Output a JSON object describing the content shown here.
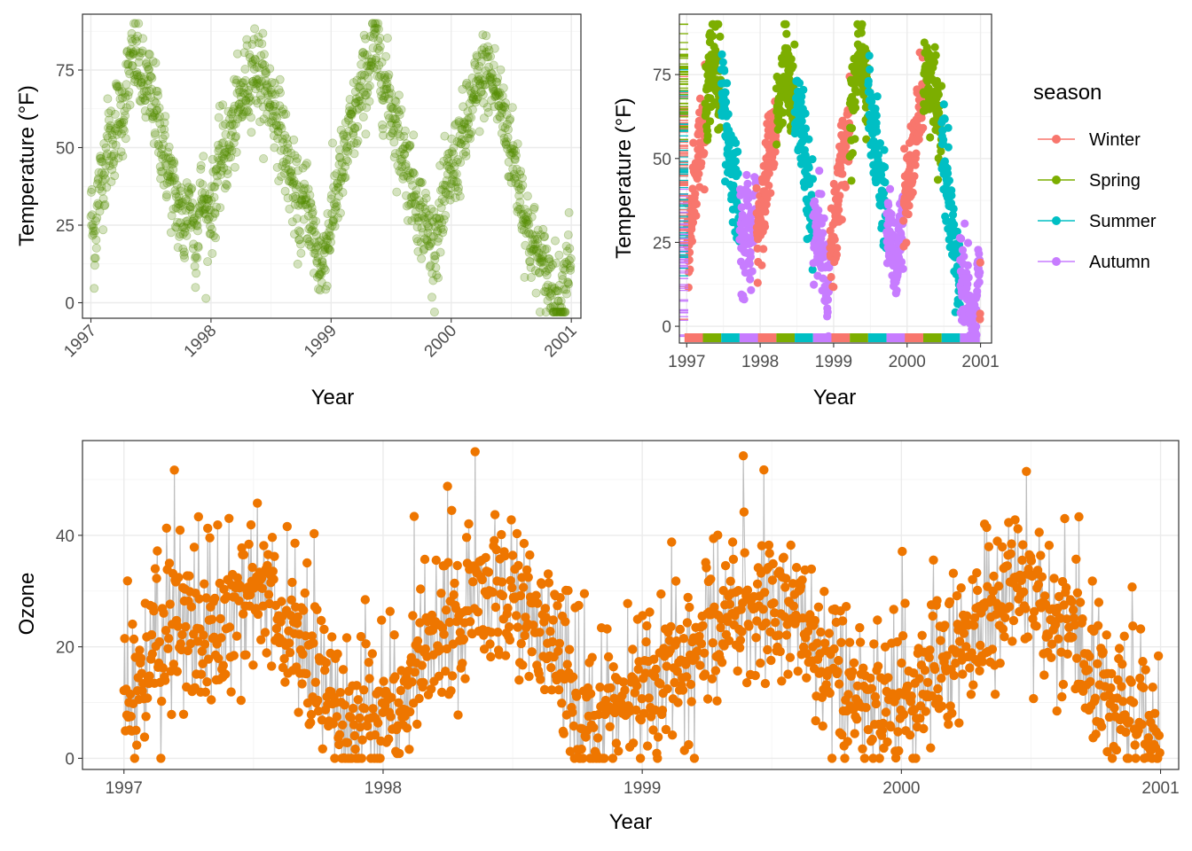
{
  "chart_data": [
    {
      "type": "scatter",
      "panel": "top-left",
      "title": "",
      "xlabel": "Year",
      "ylabel": "Temperature (°F)",
      "xlim": [
        1996.93,
        2001.08
      ],
      "ylim": [
        -5,
        93
      ],
      "x_ticks": [
        1997,
        1998,
        1999,
        2000,
        2001
      ],
      "x_tick_labels": [
        "1997",
        "1998",
        "1999",
        "2000",
        "2001"
      ],
      "x_tick_angle": 45,
      "y_ticks": [
        0,
        25,
        50,
        75
      ],
      "y_tick_labels": [
        "0",
        "25",
        "50",
        "75"
      ],
      "grid": true,
      "point_color": "#548B00",
      "point_alpha": 0.25,
      "series": [
        {
          "x": [
            1997.0,
            1997.03,
            1997.06,
            1997.09,
            1997.12,
            1997.15,
            1997.18,
            1997.21,
            1997.24,
            1997.27,
            1997.3,
            1997.33,
            1997.36,
            1997.39,
            1997.42,
            1997.45,
            1997.48,
            1997.51,
            1997.54,
            1997.57,
            1997.6,
            1997.63,
            1997.66,
            1997.69,
            1997.72,
            1997.75,
            1997.78,
            1997.81,
            1997.84,
            1997.87,
            1997.9,
            1997.93,
            1997.96,
            1997.99,
            1998.02,
            1998.05,
            1998.08,
            1998.11,
            1998.14,
            1998.17,
            1998.2,
            1998.23,
            1998.26,
            1998.29,
            1998.32,
            1998.35,
            1998.38,
            1998.41,
            1998.44,
            1998.47,
            1998.5,
            1998.53,
            1998.56,
            1998.59,
            1998.62,
            1998.65,
            1998.68,
            1998.71,
            1998.74,
            1998.77,
            1998.8,
            1998.83,
            1998.86,
            1998.89,
            1998.92,
            1998.95,
            1998.98,
            1999.01,
            1999.04,
            1999.07,
            1999.1,
            1999.13,
            1999.16,
            1999.19,
            1999.22,
            1999.25,
            1999.28,
            1999.31,
            1999.34,
            1999.37,
            1999.4,
            1999.43,
            1999.46,
            1999.49,
            1999.52,
            1999.55,
            1999.58,
            1999.61,
            1999.64,
            1999.67,
            1999.7,
            1999.73,
            1999.76,
            1999.79,
            1999.82,
            1999.85,
            1999.88,
            1999.91,
            1999.94,
            1999.97,
            2000.0,
            2000.03,
            2000.06,
            2000.09,
            2000.12,
            2000.15,
            2000.18,
            2000.21,
            2000.24,
            2000.27,
            2000.3,
            2000.33,
            2000.36,
            2000.39,
            2000.42,
            2000.45,
            2000.48,
            2000.51,
            2000.54,
            2000.57,
            2000.6,
            2000.63,
            2000.66,
            2000.69,
            2000.72,
            2000.75,
            2000.78,
            2000.81,
            2000.84,
            2000.87,
            2000.9,
            2000.93,
            2000.96,
            2000.99
          ],
          "y": [
            30,
            18,
            35,
            40,
            45,
            55,
            48,
            60,
            58,
            62,
            70,
            75,
            80,
            78,
            72,
            68,
            70,
            65,
            62,
            55,
            50,
            45,
            40,
            35,
            30,
            28,
            22,
            35,
            30,
            20,
            28,
            38,
            25,
            32,
            30,
            42,
            45,
            50,
            48,
            55,
            58,
            62,
            66,
            70,
            72,
            78,
            75,
            72,
            70,
            68,
            65,
            62,
            58,
            55,
            48,
            42,
            38,
            32,
            28,
            30,
            35,
            25,
            20,
            15,
            10,
            18,
            22,
            28,
            35,
            40,
            42,
            50,
            55,
            58,
            62,
            68,
            72,
            75,
            80,
            82,
            78,
            72,
            70,
            65,
            60,
            55,
            52,
            48,
            42,
            40,
            35,
            30,
            28,
            25,
            20,
            18,
            22,
            28,
            30,
            38,
            42,
            45,
            48,
            52,
            55,
            60,
            64,
            68,
            70,
            74,
            75,
            72,
            70,
            66,
            62,
            58,
            52,
            48,
            42,
            38,
            30,
            25,
            20,
            18,
            15,
            12,
            10,
            8,
            5,
            3,
            0,
            2,
            12,
            18
          ]
        }
      ]
    },
    {
      "type": "scatter",
      "panel": "top-right",
      "title": "",
      "xlabel": "Year",
      "ylabel": "Temperature (°F)",
      "xlim": [
        1996.9,
        2001.15
      ],
      "ylim": [
        -5,
        93
      ],
      "x_ticks": [
        1997,
        1998,
        1999,
        2000,
        2001
      ],
      "x_tick_labels": [
        "1997",
        "1998",
        "1999",
        "2000",
        "2001"
      ],
      "y_ticks": [
        0,
        25,
        50,
        75
      ],
      "y_tick_labels": [
        "0",
        "25",
        "50",
        "75"
      ],
      "grid": true,
      "rug": true,
      "legend": {
        "title": "season",
        "position": "right",
        "entries": [
          {
            "label": "Winter",
            "color": "#F8766D"
          },
          {
            "label": "Spring",
            "color": "#7CAE00"
          },
          {
            "label": "Summer",
            "color": "#00BFC4"
          },
          {
            "label": "Autumn",
            "color": "#C77CFF"
          }
        ]
      },
      "series": [
        {
          "name": "Winter",
          "color": "#F8766D",
          "ranges": [
            [
              1996.97,
              1997.25
            ],
            [
              1997.95,
              1998.22
            ],
            [
              1998.95,
              1999.22
            ],
            [
              1999.95,
              2000.22
            ]
          ]
        },
        {
          "name": "Spring",
          "color": "#7CAE00",
          "ranges": [
            [
              1997.22,
              1997.47
            ],
            [
              1998.22,
              1998.47
            ],
            [
              1999.22,
              1999.47
            ],
            [
              2000.22,
              2000.47
            ]
          ]
        },
        {
          "name": "Summer",
          "color": "#00BFC4",
          "ranges": [
            [
              1997.47,
              1997.72
            ],
            [
              1998.47,
              1998.72
            ],
            [
              1999.47,
              1999.72
            ],
            [
              2000.47,
              2000.72
            ]
          ]
        },
        {
          "name": "Autumn",
          "color": "#C77CFF",
          "ranges": [
            [
              1997.72,
              1997.97
            ],
            [
              1998.72,
              1998.97
            ],
            [
              1999.72,
              1999.97
            ],
            [
              2000.72,
              2000.99
            ]
          ]
        }
      ]
    },
    {
      "type": "scatter",
      "panel": "bottom",
      "title": "",
      "xlabel": "Year",
      "ylabel": "Ozone",
      "xlim": [
        1996.84,
        2001.07
      ],
      "ylim": [
        -2,
        57
      ],
      "x_ticks": [
        1997,
        1998,
        1999,
        2000,
        2001
      ],
      "x_tick_labels": [
        "1997",
        "1998",
        "1999",
        "2000",
        "2001"
      ],
      "y_ticks": [
        0,
        20,
        40
      ],
      "y_tick_labels": [
        "0",
        "20",
        "40"
      ],
      "grid": true,
      "point_color": "#EE7600",
      "segment_color": "#BEBEBE",
      "series": [
        {
          "x": [
            1997.0,
            1997.05,
            1997.1,
            1997.15,
            1997.2,
            1997.25,
            1997.3,
            1997.35,
            1997.4,
            1997.45,
            1997.5,
            1997.55,
            1997.6,
            1997.65,
            1997.7,
            1997.75,
            1997.8,
            1997.85,
            1997.9,
            1997.95,
            1998.0,
            1998.05,
            1998.1,
            1998.15,
            1998.2,
            1998.25,
            1998.3,
            1998.35,
            1998.4,
            1998.45,
            1998.5,
            1998.55,
            1998.6,
            1998.65,
            1998.7,
            1998.75,
            1998.8,
            1998.85,
            1998.9,
            1998.95,
            1999.0,
            1999.05,
            1999.1,
            1999.15,
            1999.2,
            1999.25,
            1999.3,
            1999.35,
            1999.4,
            1999.45,
            1999.5,
            1999.55,
            1999.6,
            1999.65,
            1999.7,
            1999.75,
            1999.8,
            1999.85,
            1999.9,
            1999.95,
            2000.0,
            2000.05,
            2000.1,
            2000.15,
            2000.2,
            2000.25,
            2000.3,
            2000.35,
            2000.4,
            2000.45,
            2000.5,
            2000.55,
            2000.6,
            2000.65,
            2000.7,
            2000.75,
            2000.8,
            2000.85,
            2000.9,
            2000.95,
            2000.99
          ],
          "y": [
            8,
            12,
            15,
            18,
            22,
            24,
            20,
            25,
            27,
            28,
            32,
            30,
            26,
            22,
            18,
            14,
            9,
            7,
            6,
            7,
            6,
            8,
            12,
            18,
            22,
            25,
            27,
            28,
            30,
            31,
            30,
            28,
            25,
            20,
            14,
            10,
            8,
            7,
            8,
            9,
            10,
            12,
            15,
            18,
            20,
            22,
            24,
            26,
            28,
            30,
            29,
            28,
            26,
            22,
            18,
            14,
            12,
            11,
            10,
            10,
            11,
            12,
            14,
            16,
            19,
            22,
            24,
            26,
            28,
            30,
            28,
            26,
            24,
            22,
            18,
            14,
            11,
            9,
            7,
            6,
            8
          ]
        }
      ]
    }
  ]
}
